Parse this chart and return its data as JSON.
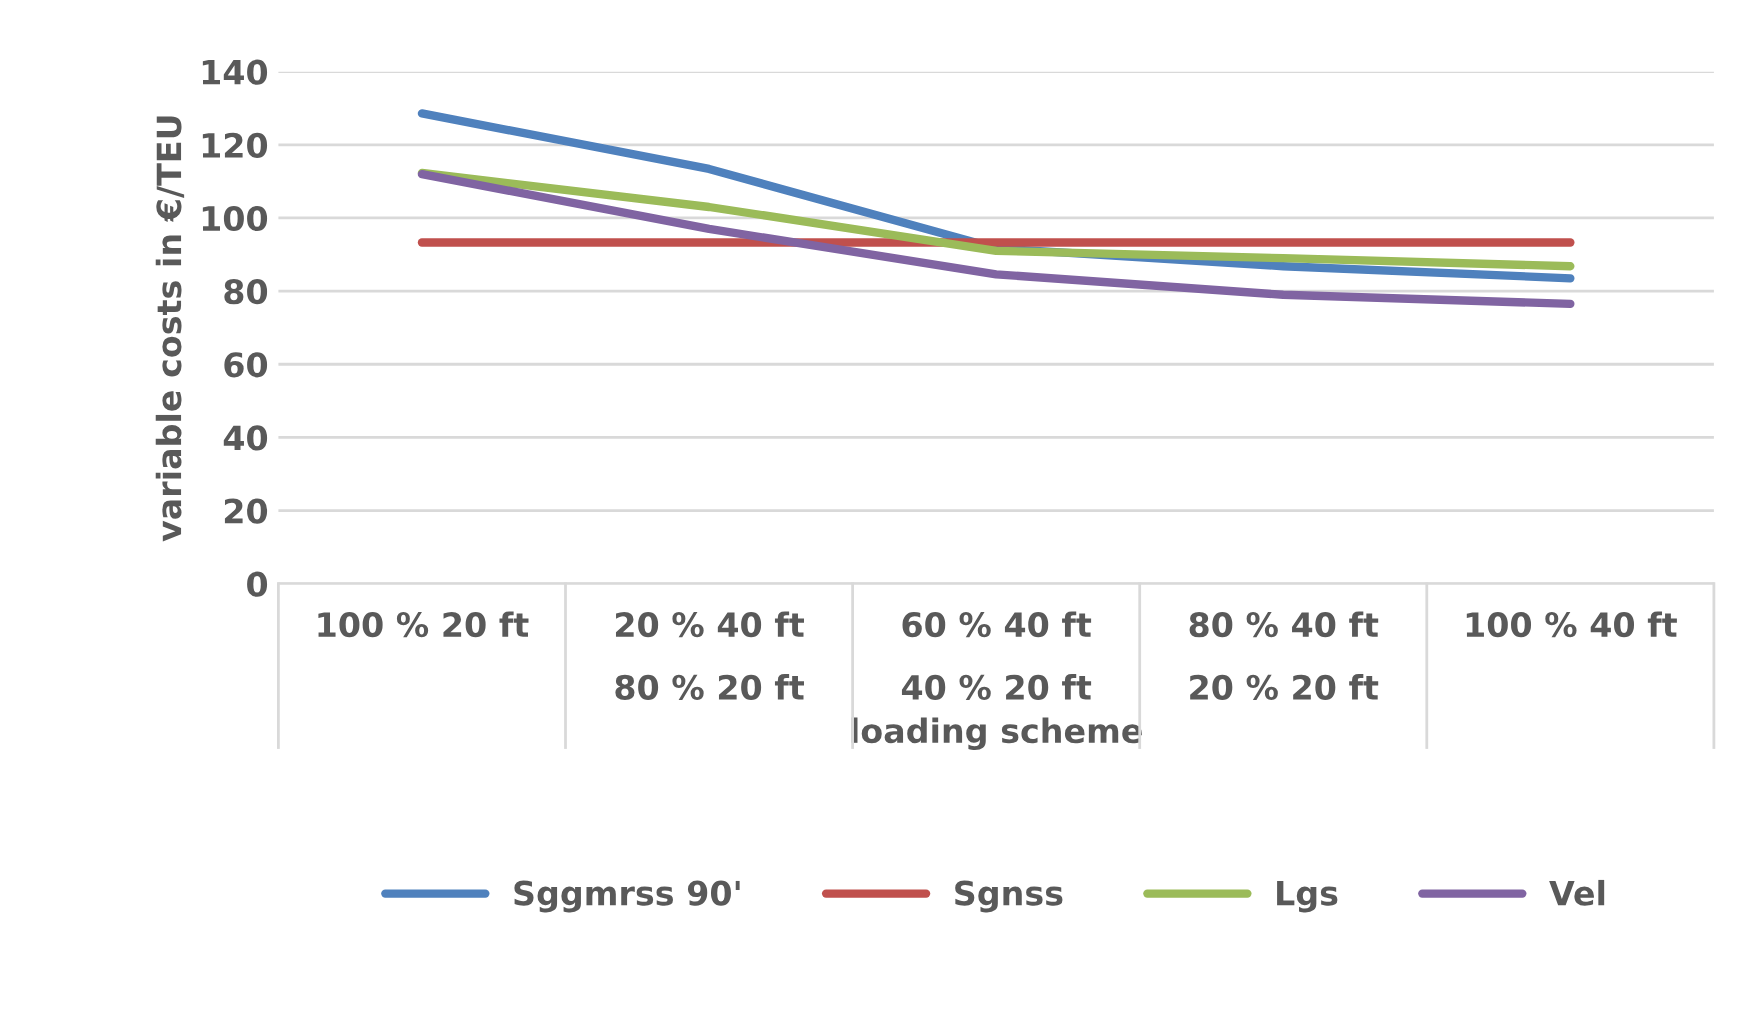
{
  "chart_data": {
    "type": "line",
    "xlabel": "loading scheme",
    "ylabel": "variable costs in €/TEU",
    "categories": [
      "100 % 20 ft",
      "20 % 40 ft\n80 % 20 ft",
      "60 % 40 ft\n40 % 20 ft",
      "80 % 40 ft\n20 % 20 ft",
      "100 % 40 ft"
    ],
    "series": [
      {
        "name": "Sggmrss 90'",
        "color": "#4f81bd",
        "values": [
          128.6,
          113.4,
          91.7,
          86.8,
          83.5
        ]
      },
      {
        "name": "Sgnss",
        "color": "#c0504d",
        "values": [
          93.3,
          93.3,
          93.3,
          93.3,
          93.3
        ]
      },
      {
        "name": "Lgs",
        "color": "#9bbb59",
        "values": [
          112.3,
          103,
          91,
          89,
          86.8
        ]
      },
      {
        "name": "Vel",
        "color": "#8064a2",
        "values": [
          112,
          97,
          84.6,
          79,
          76.5
        ]
      }
    ],
    "ylim": [
      0,
      140
    ],
    "yticks": [
      0,
      20,
      40,
      60,
      80,
      100,
      120,
      140
    ],
    "grid": "y",
    "legend": "bottom",
    "marker": "none",
    "line_style": "solid"
  }
}
